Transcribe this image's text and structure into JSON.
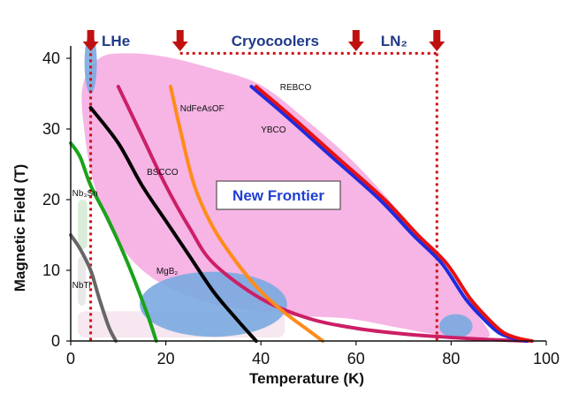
{
  "chart_data": {
    "type": "line",
    "xlabel": "Temperature (K)",
    "ylabel": "Magnetic Field  (T)",
    "xlim": [
      0,
      100
    ],
    "ylim": [
      0,
      40
    ],
    "x_ticks": [
      "0",
      "20",
      "40",
      "60",
      "80",
      "100"
    ],
    "y_ticks": [
      "0",
      "10",
      "20",
      "30",
      "40"
    ],
    "series": [
      {
        "name": "NbTi",
        "color": "#666666",
        "x": [
          0,
          2,
          4.2,
          6,
          8,
          9.5
        ],
        "y": [
          15,
          13,
          10,
          6,
          2,
          0
        ]
      },
      {
        "name": "Nb3Sn",
        "color": "#1aa31a",
        "x": [
          0,
          2,
          4.2,
          8,
          12,
          16,
          18
        ],
        "y": [
          28,
          26,
          22,
          17,
          11,
          4,
          0
        ]
      },
      {
        "name": "BSCCO",
        "color": "#cc1f66",
        "x": [
          10,
          15,
          20,
          25,
          30,
          40,
          50,
          60,
          70,
          80,
          88,
          96
        ],
        "y": [
          36,
          29,
          22,
          16,
          11,
          6,
          3.2,
          1.8,
          1.0,
          0.5,
          0.2,
          0
        ]
      },
      {
        "name": "MgB2",
        "color": "#000000",
        "x": [
          4.2,
          10,
          15,
          20,
          25,
          30,
          35,
          39
        ],
        "y": [
          33,
          28,
          22,
          17,
          12,
          7,
          3,
          0
        ]
      },
      {
        "name": "NdFeAsOF",
        "color": "#ff8c1a",
        "x": [
          21,
          23,
          26,
          30,
          35,
          40,
          45,
          50,
          53
        ],
        "y": [
          36,
          30,
          22,
          16,
          11,
          7,
          4,
          1.5,
          0
        ]
      },
      {
        "name": "YBCO",
        "color": "#1f2be0",
        "x": [
          38,
          45,
          55,
          65,
          72,
          78,
          83,
          87,
          90,
          93,
          96
        ],
        "y": [
          36,
          32,
          26,
          20,
          15,
          11,
          6,
          3,
          1.2,
          0.4,
          0
        ]
      },
      {
        "name": "REBCO",
        "color": "#e81010",
        "x": [
          39,
          46,
          56,
          66,
          73,
          79,
          84,
          88,
          91,
          94,
          97
        ],
        "y": [
          36,
          32,
          26,
          20,
          15,
          11,
          6,
          3,
          1.2,
          0.4,
          0
        ]
      }
    ],
    "curve_labels": [
      {
        "text": "REBCO",
        "x": 44,
        "y": 35.5
      },
      {
        "text": "YBCO",
        "x": 40,
        "y": 29.5
      },
      {
        "text": "NdFeAsOF",
        "x": 23,
        "y": 32.5
      },
      {
        "text": "BSCCO",
        "x": 16,
        "y": 23.5
      },
      {
        "text": "Nb₃Sn",
        "x": 0.3,
        "y": 20.5
      },
      {
        "text": "MgB₂",
        "x": 18,
        "y": 9.5
      },
      {
        "text": "NbTi",
        "x": 0.3,
        "y": 7.5
      }
    ],
    "annotations": {
      "top_labels": [
        {
          "text": "LHe",
          "x": 9.5
        },
        {
          "text": "Cryocoolers",
          "x": 43
        },
        {
          "text": "LN₂",
          "x": 68
        }
      ],
      "arrow_positions_x": [
        4.2,
        23,
        60,
        77
      ],
      "dotted_vertical_x": [
        4.2,
        77
      ],
      "dotted_horizontal": {
        "x_from": 23,
        "x_to": 77,
        "y": 40.7
      },
      "new_frontier": "New Frontier"
    },
    "regions": [
      {
        "name": "new-frontier-region",
        "color": "#f5a8e0"
      },
      {
        "name": "lhe-ellipse",
        "cx": 4.2,
        "cy": 39.3,
        "rx": 1.3,
        "ry": 4.3,
        "color": "#7aaae0"
      },
      {
        "name": "mgb2-ellipse",
        "cx": 30,
        "cy": 5.2,
        "rx": 15.5,
        "ry": 4.6,
        "color": "#7aaae0"
      },
      {
        "name": "ln2-ellipse",
        "cx": 81,
        "cy": 2.1,
        "rx": 3.5,
        "ry": 1.7,
        "color": "#7aaae0"
      },
      {
        "name": "nb3sn-region",
        "x0": 1.5,
        "x1": 3.5,
        "y0": 13,
        "y1": 20,
        "color": "#d8ecd8"
      },
      {
        "name": "nbti-region",
        "x0": 1.5,
        "x1": 3.2,
        "y0": 5,
        "y1": 12,
        "color": "#e8e8e8"
      },
      {
        "name": "low-field-region",
        "x0": 1.5,
        "x1": 45,
        "y0": 0.5,
        "y1": 4.2,
        "color": "#f5e4f0"
      }
    ]
  }
}
